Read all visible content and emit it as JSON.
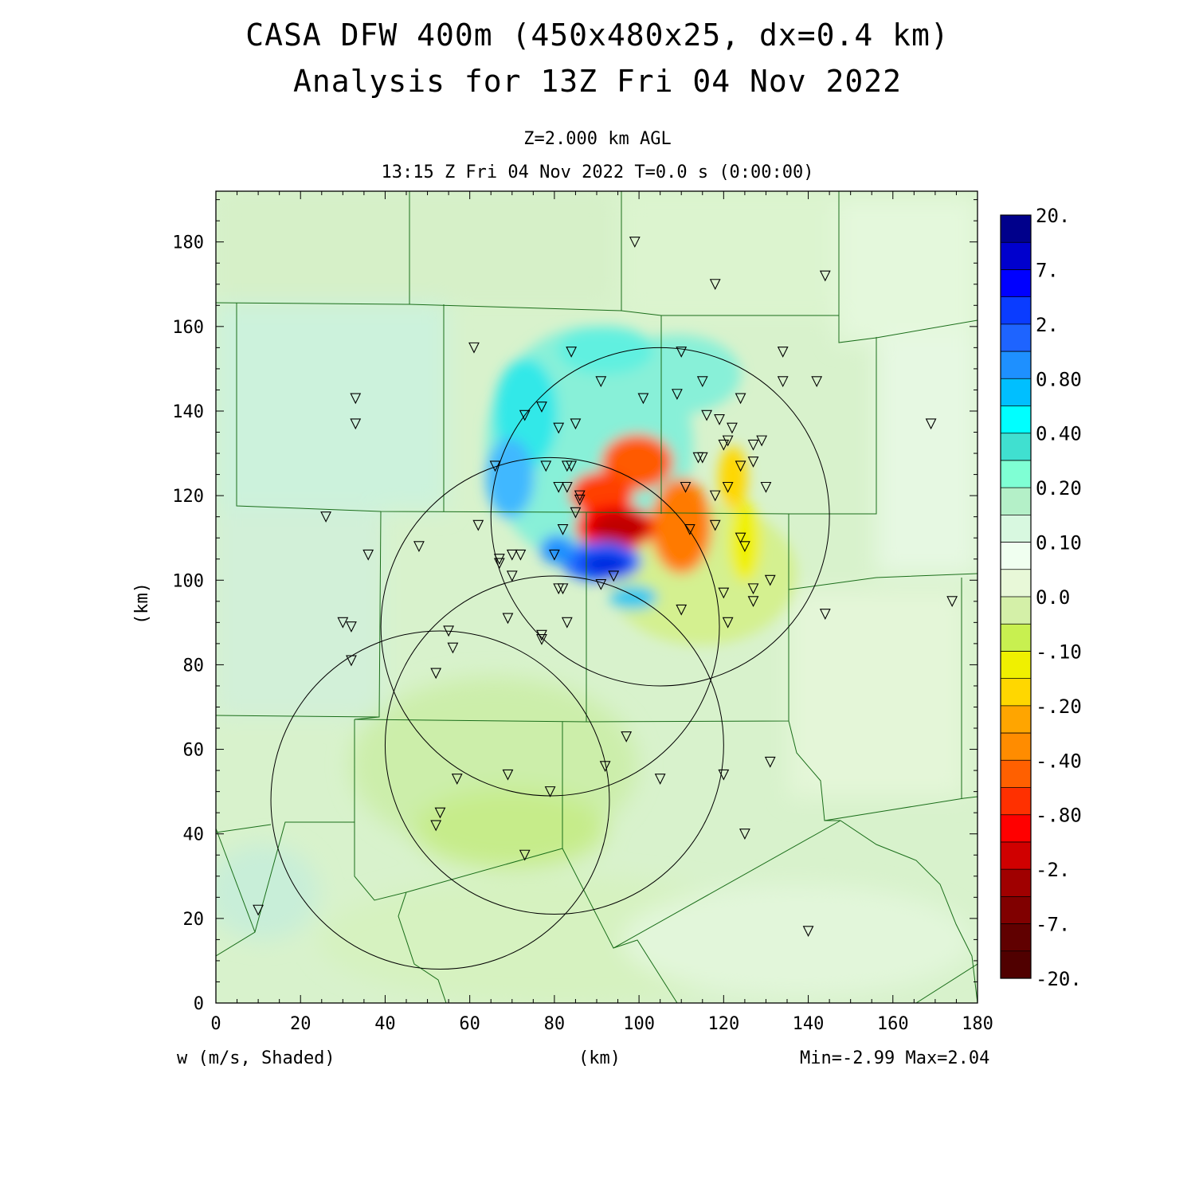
{
  "title": "CASA DFW 400m (450x480x25, dx=0.4 km)",
  "subtitle": "Analysis for 13Z Fri 04 Nov 2022",
  "level": "Z=2.000 km AGL",
  "valid_time": "13:15 Z Fri 04 Nov 2022    T=0.0 s (0:00:00)",
  "x_axis_label": "(km)",
  "y_axis_label": "(km)",
  "variable_label": "w (m/s, Shaded)",
  "min_max_label": "Min=-2.99 Max=2.04",
  "colorbar": {
    "labels": [
      "20.",
      "7.",
      "2.",
      "0.80",
      "0.40",
      "0.20",
      "0.10",
      "0.0",
      "-.10",
      "-.20",
      "-.40",
      "-.80",
      "-2.",
      "-7.",
      "-20."
    ],
    "colors": [
      "#00008b",
      "#0000cd",
      "#0000ff",
      "#0a3cff",
      "#1e64ff",
      "#1e90ff",
      "#00bfff",
      "#00ffff",
      "#40e0d0",
      "#7fffd4",
      "#b4f0c8",
      "#d8f8e0",
      "#f0fff0",
      "#e8f8d8",
      "#d4f0a8",
      "#c8f050",
      "#f0f000",
      "#ffd700",
      "#ffa500",
      "#ff8c00",
      "#ff6000",
      "#ff3000",
      "#ff0000",
      "#d00000",
      "#a00000",
      "#800000",
      "#600000",
      "#500000"
    ]
  },
  "chart_data": {
    "type": "map",
    "xlim": [
      0,
      180
    ],
    "ylim": [
      0,
      192
    ],
    "x_ticks": [
      0,
      20,
      40,
      60,
      80,
      100,
      120,
      140,
      160,
      180
    ],
    "y_ticks": [
      0,
      20,
      40,
      60,
      80,
      100,
      120,
      140,
      160,
      180
    ],
    "min": -2.99,
    "max": 2.04,
    "radar_range_rings": [
      {
        "center_x": 105,
        "center_y": 115,
        "radius_km": 40
      },
      {
        "center_x": 79,
        "center_y": 89,
        "radius_km": 40
      },
      {
        "center_x": 53,
        "center_y": 48,
        "radius_km": 40
      },
      {
        "center_x": 80,
        "center_y": 61,
        "radius_km": 40
      }
    ],
    "stations": [
      [
        99,
        180
      ],
      [
        118,
        170
      ],
      [
        144,
        172
      ],
      [
        61,
        155
      ],
      [
        84,
        154
      ],
      [
        110,
        154
      ],
      [
        134,
        154
      ],
      [
        33,
        143
      ],
      [
        33,
        137
      ],
      [
        91,
        147
      ],
      [
        101,
        143
      ],
      [
        109,
        144
      ],
      [
        115,
        147
      ],
      [
        124,
        143
      ],
      [
        134,
        147
      ],
      [
        142,
        147
      ],
      [
        169,
        137
      ],
      [
        73,
        139
      ],
      [
        77,
        141
      ],
      [
        81,
        136
      ],
      [
        85,
        137
      ],
      [
        116,
        139
      ],
      [
        119,
        138
      ],
      [
        122,
        136
      ],
      [
        120,
        132
      ],
      [
        121,
        133
      ],
      [
        129,
        133
      ],
      [
        127,
        132
      ],
      [
        66,
        127
      ],
      [
        78,
        127
      ],
      [
        84,
        127
      ],
      [
        83,
        127
      ],
      [
        114,
        129
      ],
      [
        115,
        129
      ],
      [
        124,
        127
      ],
      [
        127,
        128
      ],
      [
        81,
        122
      ],
      [
        83,
        122
      ],
      [
        86,
        120
      ],
      [
        86,
        119
      ],
      [
        111,
        122
      ],
      [
        121,
        122
      ],
      [
        130,
        122
      ],
      [
        118,
        120
      ],
      [
        85,
        116
      ],
      [
        26,
        115
      ],
      [
        62,
        113
      ],
      [
        82,
        112
      ],
      [
        112,
        112
      ],
      [
        118,
        113
      ],
      [
        124,
        110
      ],
      [
        125,
        108
      ],
      [
        36,
        106
      ],
      [
        48,
        108
      ],
      [
        67,
        105
      ],
      [
        67,
        104
      ],
      [
        70,
        106
      ],
      [
        72,
        106
      ],
      [
        80,
        106
      ],
      [
        70,
        101
      ],
      [
        94,
        101
      ],
      [
        131,
        100
      ],
      [
        81,
        98
      ],
      [
        82,
        98
      ],
      [
        91,
        99
      ],
      [
        120,
        97
      ],
      [
        127,
        98
      ],
      [
        127,
        95
      ],
      [
        30,
        90
      ],
      [
        32,
        89
      ],
      [
        69,
        91
      ],
      [
        83,
        90
      ],
      [
        110,
        93
      ],
      [
        121,
        90
      ],
      [
        144,
        92
      ],
      [
        174,
        95
      ],
      [
        55,
        88
      ],
      [
        77,
        87
      ],
      [
        77,
        86
      ],
      [
        32,
        81
      ],
      [
        56,
        84
      ],
      [
        52,
        78
      ],
      [
        97,
        63
      ],
      [
        92,
        56
      ],
      [
        57,
        53
      ],
      [
        69,
        54
      ],
      [
        105,
        53
      ],
      [
        120,
        54
      ],
      [
        131,
        57
      ],
      [
        79,
        50
      ],
      [
        53,
        45
      ],
      [
        52,
        42
      ],
      [
        125,
        40
      ],
      [
        73,
        35
      ],
      [
        10,
        22
      ],
      [
        140,
        17
      ]
    ]
  }
}
